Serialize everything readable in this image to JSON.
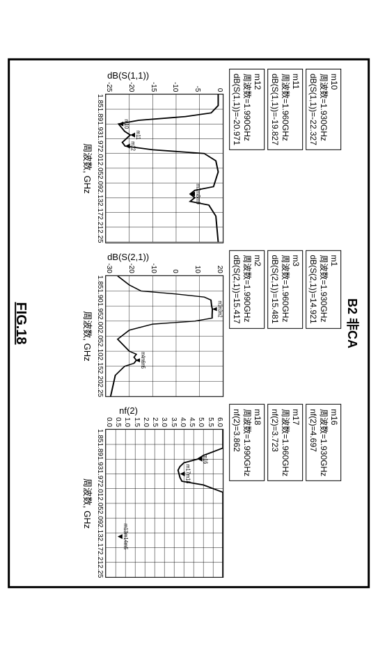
{
  "title": "B2 非CA",
  "figure_caption": "FIG.18",
  "panels": [
    {
      "id": "s11",
      "infoboxes": [
        {
          "name": "m10",
          "line2": "周波数=1.930GHz",
          "line3": "dB(S(1,1))=-22.327"
        },
        {
          "name": "m11",
          "line2": "周波数=1.960GHz",
          "line3": "dB(S(1,1))=-19.827"
        },
        {
          "name": "m12",
          "line2": "周波数=1.990GHz",
          "line3": "dB(S(1,1))=-20.971"
        }
      ],
      "chart": {
        "type": "line",
        "ylabel": "dB(S(1,1))",
        "xlabel": "周波数, GHz",
        "xlim": [
          1.85,
          2.25
        ],
        "ylim": [
          -25,
          0
        ],
        "ytick_step": 5,
        "yticks": [
          "0",
          "-5",
          "-10",
          "-15",
          "-20",
          "-25"
        ],
        "xticks_top": [
          "1.85",
          "1.89",
          "1.93",
          "1.97",
          "2.01",
          "2.05",
          "2.09",
          "2.13",
          "2.17",
          "2.21",
          "2.25"
        ],
        "xticks_bot": [
          "",
          "1.89",
          "1.93",
          "1.97",
          "2.01",
          "2.05",
          "2.09",
          "2.13",
          "2.17",
          "2.21",
          ""
        ],
        "background_color": "#ffffff",
        "grid_color": "#000000",
        "line_color": "#000000",
        "line_width": 2,
        "data": [
          [
            1.85,
            -1.0
          ],
          [
            1.88,
            -1.0
          ],
          [
            1.9,
            -2.5
          ],
          [
            1.91,
            -8.0
          ],
          [
            1.92,
            -18.0
          ],
          [
            1.93,
            -22.3
          ],
          [
            1.95,
            -21.0
          ],
          [
            1.96,
            -19.8
          ],
          [
            1.98,
            -21.5
          ],
          [
            1.99,
            -20.9
          ],
          [
            2.0,
            -15.0
          ],
          [
            2.01,
            -4.0
          ],
          [
            2.03,
            -1.5
          ],
          [
            2.06,
            -1.0
          ],
          [
            2.1,
            -2.0
          ],
          [
            2.11,
            -6.0
          ],
          [
            2.12,
            -7.0
          ],
          [
            2.13,
            -6.0
          ],
          [
            2.14,
            -7.0
          ],
          [
            2.15,
            -3.0
          ],
          [
            2.18,
            -1.5
          ],
          [
            2.25,
            -1.0
          ]
        ],
        "markers": [
          {
            "label": "m10",
            "x": 1.93,
            "y": -22.3
          },
          {
            "label": "m11",
            "x": 1.96,
            "y": -19.8
          },
          {
            "label": "m12",
            "x": 1.99,
            "y": -20.9
          },
          {
            "label": "m7m8m9",
            "x": 2.12,
            "y": -7.0
          }
        ]
      }
    },
    {
      "id": "s21",
      "infoboxes": [
        {
          "name": "m1",
          "line2": "周波数=1.930GHz",
          "line3": "dB(S(2,1))=14.921"
        },
        {
          "name": "m3",
          "line2": "周波数=1.960GHz",
          "line3": "dB(S(2,1))=15.481"
        },
        {
          "name": "m2",
          "line2": "周波数=1.990GHz",
          "line3": "dB(S(2,1))=15.417"
        }
      ],
      "chart": {
        "type": "line",
        "ylabel": "dB(S(2,1))",
        "xlabel": "周波数, GHz",
        "xlim": [
          1.85,
          2.25
        ],
        "ylim": [
          -30,
          20
        ],
        "ytick_step": 10,
        "yticks": [
          "20",
          "10",
          "0",
          "-10",
          "-20",
          "-30"
        ],
        "xticks_top": [
          "1.85",
          "1.90",
          "1.95",
          "2.00",
          "2.05",
          "2.10",
          "2.15",
          "2.20",
          "2.25"
        ],
        "xticks_bot": [
          "",
          "1.90",
          "1.95",
          "2.00",
          "2.05",
          "2.10",
          "2.15",
          "2.20",
          ""
        ],
        "background_color": "#ffffff",
        "grid_color": "#000000",
        "line_color": "#000000",
        "line_width": 2,
        "data": [
          [
            1.85,
            -25.0
          ],
          [
            1.88,
            -20.0
          ],
          [
            1.9,
            -15.0
          ],
          [
            1.91,
            0.0
          ],
          [
            1.92,
            12.0
          ],
          [
            1.93,
            14.9
          ],
          [
            1.95,
            15.2
          ],
          [
            1.96,
            15.5
          ],
          [
            1.98,
            15.4
          ],
          [
            1.99,
            15.4
          ],
          [
            2.0,
            8.0
          ],
          [
            2.01,
            -10.0
          ],
          [
            2.03,
            -20.0
          ],
          [
            2.06,
            -25.0
          ],
          [
            2.1,
            -20.0
          ],
          [
            2.11,
            -17.0
          ],
          [
            2.12,
            -18.0
          ],
          [
            2.13,
            -17.0
          ],
          [
            2.14,
            -18.0
          ],
          [
            2.15,
            -22.0
          ],
          [
            2.18,
            -26.0
          ],
          [
            2.25,
            -28.0
          ]
        ],
        "markers": [
          {
            "label": "m1m3m2",
            "x": 1.96,
            "y": 15.4
          },
          {
            "label": "m4m6m5",
            "x": 2.13,
            "y": -17.5
          }
        ]
      }
    },
    {
      "id": "nf2",
      "infoboxes": [
        {
          "name": "m16",
          "line2": "周波数=1.930GHz",
          "line3": "nf(2)=4.697"
        },
        {
          "name": "m17",
          "line2": "周波数=1.960GHz",
          "line3": "nf(2)=3.723"
        },
        {
          "name": "m18",
          "line2": "周波数=1.990GHz",
          "line3": "nf(2)=3.862"
        }
      ],
      "chart": {
        "type": "line",
        "ylabel": "nf(2)",
        "xlabel": "周波数, GHz",
        "xlim": [
          1.85,
          2.25
        ],
        "ylim": [
          0.0,
          6.0
        ],
        "ytick_step": 0.5,
        "yticks": [
          "6.0",
          "5.5",
          "5.0",
          "4.5",
          "4.0",
          "3.5",
          "3.0",
          "2.5",
          "2.0",
          "1.5",
          "1.0",
          "0.5",
          "0.0"
        ],
        "xticks_top": [
          "1.85",
          "1.89",
          "1.93",
          "1.97",
          "2.01",
          "2.05",
          "2.09",
          "2.13",
          "2.17",
          "2.21",
          "2.25"
        ],
        "xticks_bot": [
          "",
          "1.89",
          "1.93",
          "1.97",
          "2.01",
          "2.05",
          "2.09",
          "2.13",
          "2.17",
          "2.21",
          ""
        ],
        "background_color": "#ffffff",
        "grid_color": "#000000",
        "line_color": "#000000",
        "line_width": 2,
        "data": [
          [
            1.85,
            6.0
          ],
          [
            1.88,
            6.0
          ],
          [
            1.9,
            6.0
          ],
          [
            1.91,
            5.5
          ],
          [
            1.92,
            5.0
          ],
          [
            1.93,
            4.7
          ],
          [
            1.94,
            4.0
          ],
          [
            1.95,
            3.8
          ],
          [
            1.96,
            3.7
          ],
          [
            1.98,
            3.8
          ],
          [
            1.99,
            3.9
          ],
          [
            2.0,
            5.0
          ],
          [
            2.02,
            6.0
          ],
          [
            2.06,
            6.0
          ],
          [
            2.25,
            6.0
          ]
        ],
        "markers": [
          {
            "label": "m16",
            "x": 1.93,
            "y": 4.7
          },
          {
            "label": "m17m18",
            "x": 1.97,
            "y": 3.8
          },
          {
            "label": "m13m14m5",
            "x": 2.14,
            "y": 0.6
          }
        ]
      }
    }
  ]
}
